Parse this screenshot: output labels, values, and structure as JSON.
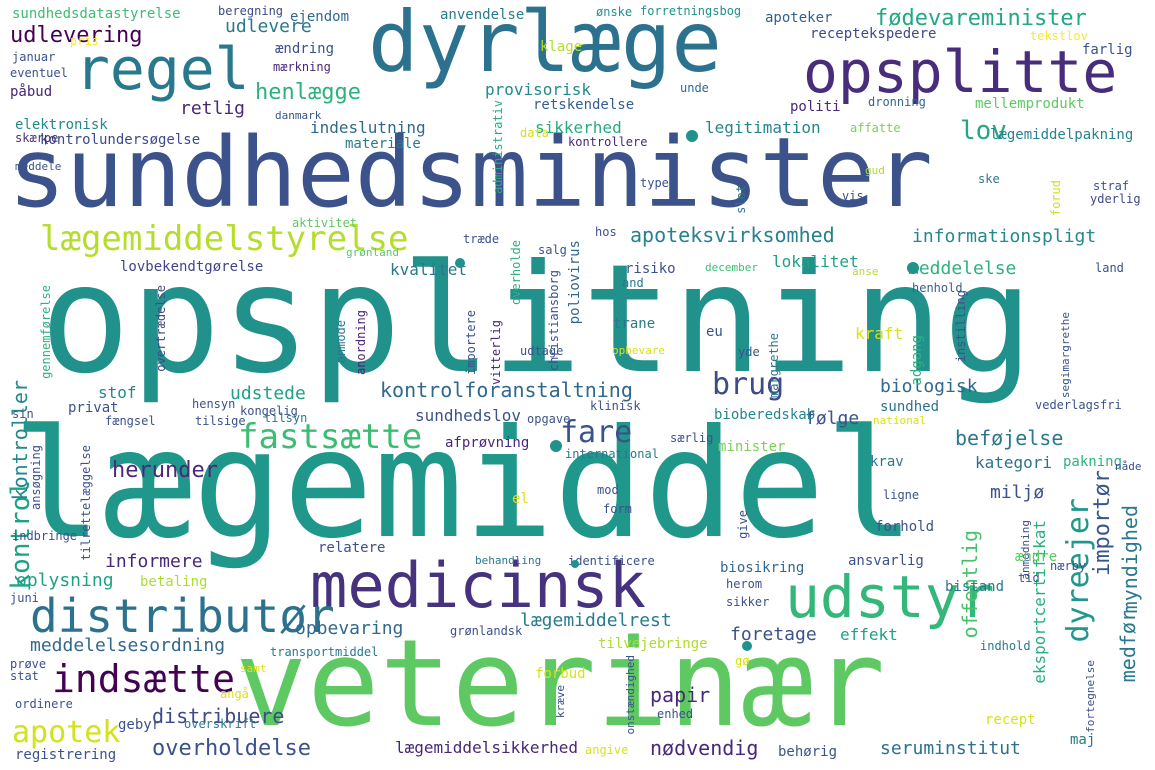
{
  "words": [
    {
      "text": "opsplitning",
      "color": "#21918c"
    },
    {
      "text": "lægemiddel",
      "color": "#1f988b"
    },
    {
      "text": "sundhedsminister",
      "color": "#3b528b"
    },
    {
      "text": "veterinær",
      "color": "#5ec962"
    },
    {
      "text": "dyrlæge",
      "color": "#2c728e"
    },
    {
      "text": "opsplitte",
      "color": "#472d7b"
    },
    {
      "text": "medicinsk",
      "color": "#46327e"
    },
    {
      "text": "regel",
      "color": "#2a788e"
    },
    {
      "text": "udstyr",
      "color": "#35b779"
    },
    {
      "text": "distributør",
      "color": "#2c728e"
    },
    {
      "text": "lægemiddelstyrelse",
      "color": "#b5de2b"
    },
    {
      "text": "fastsætte",
      "color": "#3dbc74"
    },
    {
      "text": "indsætte",
      "color": "#440154"
    },
    {
      "text": "apotek",
      "color": "#d2e21b"
    },
    {
      "text": "fødevareminister",
      "color": "#22a884"
    },
    {
      "text": "henlægge",
      "color": "#2db27d"
    },
    {
      "text": "kontrolforanstaltning",
      "color": "#31688e"
    },
    {
      "text": "brug",
      "color": "#3e4a89"
    },
    {
      "text": "fare",
      "color": "#3b528b"
    },
    {
      "text": "herunder",
      "color": "#482878"
    },
    {
      "text": "apoteksvirksomhed",
      "color": "#27808e"
    },
    {
      "text": "informationspligt",
      "color": "#23898e"
    },
    {
      "text": "udlevering",
      "color": "#440154"
    },
    {
      "text": "lov",
      "color": "#22a884"
    },
    {
      "text": "kontrol",
      "color": "#1fa187"
    },
    {
      "text": "kontroller",
      "color": "#23898e"
    },
    {
      "text": "dyreejer",
      "color": "#1f988b"
    },
    {
      "text": "importør",
      "color": "#39568c"
    },
    {
      "text": "medfør",
      "color": "#2a788e"
    },
    {
      "text": "myndighed",
      "color": "#2a788e"
    },
    {
      "text": "overholdelse",
      "color": "#3b528b"
    },
    {
      "text": "distribuere",
      "color": "#3e4a89"
    },
    {
      "text": "meddelelsesordning",
      "color": "#31688e"
    },
    {
      "text": "opbevaring",
      "color": "#31688e"
    },
    {
      "text": "lægemiddelrest",
      "color": "#287c8e"
    },
    {
      "text": "foretage",
      "color": "#3b528b"
    },
    {
      "text": "papir",
      "color": "#482878"
    },
    {
      "text": "nødvendig",
      "color": "#482878"
    },
    {
      "text": "lægemiddelsikkerhed",
      "color": "#482878"
    },
    {
      "text": "seruminstitut",
      "color": "#2c728e"
    },
    {
      "text": "beføjelse",
      "color": "#2a788e"
    },
    {
      "text": "biologisk",
      "color": "#31688e"
    },
    {
      "text": "udstede",
      "color": "#1fa187"
    },
    {
      "text": "sundhedslov",
      "color": "#3b528b"
    },
    {
      "text": "retlig",
      "color": "#482878"
    },
    {
      "text": "udlevere",
      "color": "#2a788e"
    },
    {
      "text": "provisorisk",
      "color": "#23898e"
    },
    {
      "text": "retskendelse",
      "color": "#355f8d"
    },
    {
      "text": "sikkerhed",
      "color": "#25ab82"
    },
    {
      "text": "legitimation",
      "color": "#25858e"
    },
    {
      "text": "kontrolundersøgelse",
      "color": "#3e4a89"
    },
    {
      "text": "indeslutning",
      "color": "#31688e"
    },
    {
      "text": "materiale",
      "color": "#287c8e"
    },
    {
      "text": "elektronisk",
      "color": "#23898e"
    },
    {
      "text": "skærpe",
      "color": "#46327e"
    },
    {
      "text": "lovbekendtgørelse",
      "color": "#414487"
    },
    {
      "text": "kvalitet",
      "color": "#2a788e"
    },
    {
      "text": "lokalitet",
      "color": "#1fa187"
    },
    {
      "text": "meddelelse",
      "color": "#2db27d"
    },
    {
      "text": "risiko",
      "color": "#3b528b"
    },
    {
      "text": "poliovirus",
      "color": "#31688e"
    },
    {
      "text": "miljø",
      "color": "#3b528b"
    },
    {
      "text": "følge",
      "color": "#3b528b"
    },
    {
      "text": "bioberedskab",
      "color": "#23898e"
    },
    {
      "text": "sundhed",
      "color": "#2c728e"
    },
    {
      "text": "kategori",
      "color": "#2c728e"
    },
    {
      "text": "krav",
      "color": "#2a788e"
    },
    {
      "text": "biosikring",
      "color": "#31688e"
    },
    {
      "text": "informere",
      "color": "#482878"
    },
    {
      "text": "oplysning",
      "color": "#1fa187"
    },
    {
      "text": "stof",
      "color": "#23898e"
    },
    {
      "text": "privat",
      "color": "#3b528b"
    },
    {
      "text": "offentlig",
      "color": "#4ac16d"
    },
    {
      "text": "eksportcertifikat",
      "color": "#29af7f"
    },
    {
      "text": "effekt",
      "color": "#1fa187"
    },
    {
      "text": "tilvejebringe",
      "color": "#addc30"
    },
    {
      "text": "forbud",
      "color": "#d8e219"
    },
    {
      "text": "mellemprodukt",
      "color": "#5ec962"
    },
    {
      "text": "lægemiddelpakning",
      "color": "#26828e"
    },
    {
      "text": "affatte",
      "color": "#7ad151"
    },
    {
      "text": "receptekspedere",
      "color": "#3e4a89"
    },
    {
      "text": "apoteker",
      "color": "#355f8d"
    },
    {
      "text": "farlig",
      "color": "#3b528b"
    },
    {
      "text": "politi",
      "color": "#482878"
    },
    {
      "text": "dronning",
      "color": "#31688e"
    },
    {
      "text": "sundhedsdatastyrelse",
      "color": "#3dbc74"
    },
    {
      "text": "beregning",
      "color": "#3e4a89"
    },
    {
      "text": "ejendom",
      "color": "#31688e"
    },
    {
      "text": "anvendelse",
      "color": "#287c8e"
    },
    {
      "text": "ønske",
      "color": "#21918c"
    },
    {
      "text": "forretningsbog",
      "color": "#21918c"
    },
    {
      "text": "tekstlov",
      "color": "#fde725"
    },
    {
      "text": "ændring",
      "color": "#3b528b"
    },
    {
      "text": "mærkning",
      "color": "#482878"
    },
    {
      "text": "klage",
      "color": "#b5de2b"
    },
    {
      "text": "pris",
      "color": "#fde725"
    },
    {
      "text": "januar",
      "color": "#3b528b"
    },
    {
      "text": "eventuel",
      "color": "#3b528b"
    },
    {
      "text": "påbud",
      "color": "#482878"
    },
    {
      "text": "unde",
      "color": "#31688e"
    },
    {
      "text": "danmark",
      "color": "#3b528b"
    },
    {
      "text": "administrativ",
      "color": "#29af7f"
    },
    {
      "text": "data",
      "color": "#d2e21b"
    },
    {
      "text": "kontrollere",
      "color": "#482878"
    },
    {
      "text": "meddele",
      "color": "#3b528b"
    },
    {
      "text": "type",
      "color": "#3b528b"
    },
    {
      "text": "slot",
      "color": "#2a788e"
    },
    {
      "text": "vis",
      "color": "#3b528b"
    },
    {
      "text": "gud",
      "color": "#addc30"
    },
    {
      "text": "ske",
      "color": "#2a788e"
    },
    {
      "text": "straf",
      "color": "#3b528b"
    },
    {
      "text": "yderlig",
      "color": "#3e4a89"
    },
    {
      "text": "forud",
      "color": "#d2e21b"
    },
    {
      "text": "aktivitet",
      "color": "#5ec962"
    },
    {
      "text": "træde",
      "color": "#3b528b"
    },
    {
      "text": "overholde",
      "color": "#2db27d"
    },
    {
      "text": "salg",
      "color": "#3b528b"
    },
    {
      "text": "hos",
      "color": "#3b528b"
    },
    {
      "text": "december",
      "color": "#3dbc74"
    },
    {
      "text": "henhold",
      "color": "#355f8d"
    },
    {
      "text": "land",
      "color": "#3b528b"
    },
    {
      "text": "grønland",
      "color": "#5ec962"
    },
    {
      "text": "anse",
      "color": "#b5de2b"
    },
    {
      "text": "and",
      "color": "#2a788e"
    },
    {
      "text": "christiansborg",
      "color": "#3b528b"
    },
    {
      "text": "importere",
      "color": "#3b528b"
    },
    {
      "text": "vitterlig",
      "color": "#482878"
    },
    {
      "text": "udtage",
      "color": "#3b528b"
    },
    {
      "text": "trane",
      "color": "#2a788e"
    },
    {
      "text": "eu",
      "color": "#3b528b"
    },
    {
      "text": "opbevare",
      "color": "#d8e219"
    },
    {
      "text": "margrethe",
      "color": "#2a788e"
    },
    {
      "text": "yde",
      "color": "#3b528b"
    },
    {
      "text": "kraft",
      "color": "#d8e219"
    },
    {
      "text": "adgang",
      "color": "#2db27d"
    },
    {
      "text": "instilling",
      "color": "#3b528b"
    },
    {
      "text": "segimargrethe",
      "color": "#3b528b"
    },
    {
      "text": "vederlagsfri",
      "color": "#3b528b"
    },
    {
      "text": "anmode",
      "color": "#2a788e"
    },
    {
      "text": "anordning",
      "color": "#482878"
    },
    {
      "text": "overtrædelse",
      "color": "#3e4a89"
    },
    {
      "text": "gennemførelse",
      "color": "#2db27d"
    },
    {
      "text": "sin",
      "color": "#3b528b"
    },
    {
      "text": "hensyn",
      "color": "#3b528b"
    },
    {
      "text": "kongelig",
      "color": "#3b528b"
    },
    {
      "text": "tilsyn",
      "color": "#2a788e"
    },
    {
      "text": "klinisk",
      "color": "#3b528b"
    },
    {
      "text": "fængsel",
      "color": "#3b528b"
    },
    {
      "text": "tilsige",
      "color": "#3b528b"
    },
    {
      "text": "opgave",
      "color": "#3b528b"
    },
    {
      "text": "national",
      "color": "#d8e219"
    },
    {
      "text": "særlig",
      "color": "#3b528b"
    },
    {
      "text": "afprøvning",
      "color": "#482878"
    },
    {
      "text": "minister",
      "color": "#7ad151"
    },
    {
      "text": "international",
      "color": "#2a788e"
    },
    {
      "text": "pakning",
      "color": "#2db27d"
    },
    {
      "text": "nåde",
      "color": "#3b528b"
    },
    {
      "text": "ansøgning",
      "color": "#3b528b"
    },
    {
      "text": "tilrettelæggelse",
      "color": "#3b528b"
    },
    {
      "text": "mod",
      "color": "#3b528b"
    },
    {
      "text": "form",
      "color": "#3b528b"
    },
    {
      "text": "el",
      "color": "#d8e219"
    },
    {
      "text": "give",
      "color": "#3b528b"
    },
    {
      "text": "ligne",
      "color": "#3b528b"
    },
    {
      "text": "anmodning",
      "color": "#3b528b"
    },
    {
      "text": "forhold",
      "color": "#3b528b"
    },
    {
      "text": "indbringe",
      "color": "#3b528b"
    },
    {
      "text": "relatere",
      "color": "#3b528b"
    },
    {
      "text": "behandling",
      "color": "#2a788e"
    },
    {
      "text": "identificere",
      "color": "#3b528b"
    },
    {
      "text": "ansvarlig",
      "color": "#3b528b"
    },
    {
      "text": "ændre",
      "color": "#5ec962"
    },
    {
      "text": "nærby",
      "color": "#3b528b"
    },
    {
      "text": "tid",
      "color": "#3b528b"
    },
    {
      "text": "betaling",
      "color": "#addc30"
    },
    {
      "text": "herom",
      "color": "#3b528b"
    },
    {
      "text": "bistand",
      "color": "#2a788e"
    },
    {
      "text": "juni",
      "color": "#3b528b"
    },
    {
      "text": "sikker",
      "color": "#3b528b"
    },
    {
      "text": "grønlandsk",
      "color": "#3b528b"
    },
    {
      "text": "transportmiddel",
      "color": "#2a788e"
    },
    {
      "text": "indhold",
      "color": "#2a788e"
    },
    {
      "text": "prøve",
      "color": "#3b528b"
    },
    {
      "text": "stat",
      "color": "#3b528b"
    },
    {
      "text": "samt",
      "color": "#d8e219"
    },
    {
      "text": "gø",
      "color": "#d8e219"
    },
    {
      "text": "angå",
      "color": "#d8e219"
    },
    {
      "text": "ordinere",
      "color": "#3b528b"
    },
    {
      "text": "gebyr",
      "color": "#3b528b"
    },
    {
      "text": "overskrift",
      "color": "#2a788e"
    },
    {
      "text": "kræve",
      "color": "#3b528b"
    },
    {
      "text": "onstændighed",
      "color": "#3b528b"
    },
    {
      "text": "enhed",
      "color": "#3b528b"
    },
    {
      "text": "recept",
      "color": "#d8e219"
    },
    {
      "text": "fortegnelse",
      "color": "#3b528b"
    },
    {
      "text": "maj",
      "color": "#2a788e"
    },
    {
      "text": "registrering",
      "color": "#3b528b"
    },
    {
      "text": "angive",
      "color": "#d8e219"
    },
    {
      "text": "behørig",
      "color": "#3b528b"
    }
  ]
}
